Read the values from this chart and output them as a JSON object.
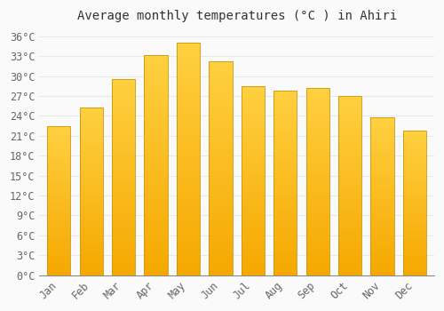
{
  "title": "Average monthly temperatures (°C ) in Ahiri",
  "months": [
    "Jan",
    "Feb",
    "Mar",
    "Apr",
    "May",
    "Jun",
    "Jul",
    "Aug",
    "Sep",
    "Oct",
    "Nov",
    "Dec"
  ],
  "values": [
    22.5,
    25.2,
    29.5,
    33.2,
    35.0,
    32.2,
    28.5,
    27.8,
    28.2,
    27.0,
    23.8,
    21.8
  ],
  "bar_color_top": "#FFD040",
  "bar_color_bottom": "#F5A800",
  "bar_edge_color": "#C8960A",
  "background_color": "#FAFAFA",
  "grid_color": "#E8E8E8",
  "ytick_step": 3,
  "ymax": 37,
  "ymin": 0,
  "title_fontsize": 10,
  "tick_fontsize": 8.5,
  "font_family": "monospace"
}
